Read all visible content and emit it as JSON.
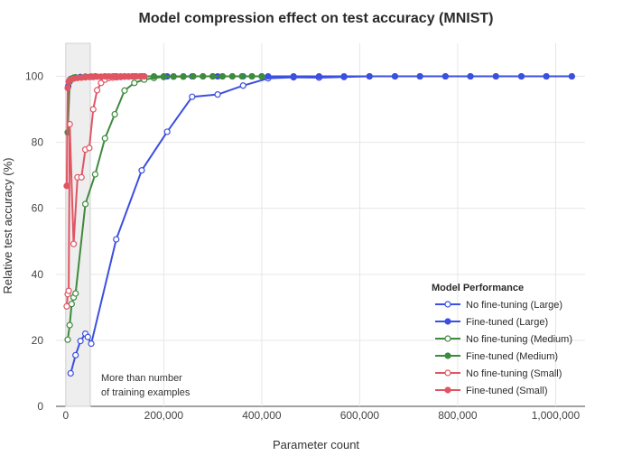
{
  "chart_data": {
    "type": "line",
    "title": "Model compression effect on test accuracy (MNIST)",
    "xlabel": "Parameter count",
    "ylabel": "Relative test accuracy (%)",
    "xlim": [
      -20000,
      1060000
    ],
    "ylim": [
      0,
      110
    ],
    "x_ticks": [
      0,
      200000,
      400000,
      600000,
      800000,
      1000000
    ],
    "x_tick_labels": [
      "0",
      "200,000",
      "400,000",
      "600,000",
      "800,000",
      "1,000,000"
    ],
    "y_ticks": [
      0,
      20,
      40,
      60,
      80,
      100
    ],
    "grid": true,
    "legend_title": "Model Performance",
    "legend_position": "bottom-right",
    "shaded_region": {
      "x_start": 0,
      "x_end": 50000,
      "label_line1": "More than number",
      "label_line2": "of training examples",
      "color": "#eeeeee"
    },
    "series": [
      {
        "name": "No fine-tuning (Large)",
        "color": "#3b4fe0",
        "marker": "open",
        "x": [
          10000,
          20000,
          30000,
          40000,
          45000,
          52000,
          103000,
          155000,
          207000,
          258000,
          310000,
          362000,
          413000,
          465000,
          517000,
          568000,
          620000,
          672000,
          723000,
          775000,
          826000,
          878000,
          930000,
          981000,
          1033000
        ],
        "y": [
          10,
          15.5,
          19.8,
          22,
          21,
          19,
          50.6,
          71.5,
          83.2,
          93.8,
          94.5,
          97.2,
          99.4,
          99.7,
          99.6,
          99.8,
          100,
          100,
          100,
          100,
          100,
          100,
          100,
          100,
          100
        ]
      },
      {
        "name": "Fine-tuned (Large)",
        "color": "#3b4fe0",
        "marker": "filled",
        "x": [
          5000,
          10000,
          20000,
          30000,
          40000,
          52000,
          103000,
          155000,
          207000,
          258000,
          310000,
          362000,
          413000,
          465000,
          517000,
          568000,
          620000,
          672000,
          723000,
          775000,
          826000,
          878000,
          930000,
          981000,
          1033000
        ],
        "y": [
          97,
          99.2,
          99.6,
          99.8,
          99.8,
          99.9,
          100,
          100,
          100,
          100,
          100,
          100,
          100,
          100,
          100,
          100,
          100,
          100,
          100,
          100,
          100,
          100,
          100,
          100,
          100
        ]
      },
      {
        "name": "No fine-tuning (Medium)",
        "color": "#3e8a3e",
        "marker": "open",
        "x": [
          4000,
          8000,
          12000,
          16000,
          20000,
          40000,
          60000,
          80000,
          100000,
          120000,
          140000,
          160000,
          180000,
          200000,
          220000,
          240000,
          260000,
          280000,
          300000,
          320000,
          340000,
          360000,
          380000,
          400000
        ],
        "y": [
          20.2,
          24.6,
          31,
          33,
          34.2,
          61.3,
          70.3,
          81.2,
          88.5,
          95.7,
          98,
          99,
          99.5,
          99.8,
          99.9,
          99.9,
          100,
          100,
          100,
          100,
          100,
          100,
          100,
          100
        ]
      },
      {
        "name": "Fine-tuned (Medium)",
        "color": "#3e8a3e",
        "marker": "filled",
        "x": [
          4000,
          8000,
          12000,
          16000,
          20000,
          40000,
          60000,
          80000,
          100000,
          120000,
          140000,
          160000,
          180000,
          200000,
          220000,
          240000,
          260000,
          280000,
          300000,
          320000,
          340000,
          360000,
          380000,
          400000
        ],
        "y": [
          83,
          98.4,
          99.3,
          99.6,
          99.7,
          99.9,
          100,
          100,
          100,
          100,
          100,
          100,
          100,
          100,
          100,
          100,
          100,
          100,
          100,
          100,
          100,
          100,
          100,
          100
        ]
      },
      {
        "name": "No fine-tuning (Small)",
        "color": "#e05564",
        "marker": "open",
        "x": [
          2000,
          4000,
          6000,
          8000,
          16000,
          24000,
          32000,
          40000,
          48000,
          56000,
          64000,
          72000,
          80000,
          88000,
          96000,
          104000,
          112000,
          120000,
          128000,
          136000,
          144000,
          152000,
          160000
        ],
        "y": [
          30.3,
          34,
          35,
          85.5,
          49.2,
          69.4,
          69.4,
          77.8,
          78.3,
          90,
          95.8,
          98,
          99,
          99.5,
          99.6,
          99.7,
          99.8,
          99.9,
          99.9,
          100,
          100,
          100,
          100
        ]
      },
      {
        "name": "Fine-tuned (Small)",
        "color": "#e05564",
        "marker": "filled",
        "x": [
          2000,
          4000,
          6000,
          8000,
          16000,
          24000,
          32000,
          40000,
          48000,
          56000,
          64000,
          72000,
          80000,
          88000,
          96000,
          104000,
          112000,
          120000,
          128000,
          136000,
          144000,
          152000,
          160000
        ],
        "y": [
          66.8,
          96.5,
          98.4,
          98.9,
          99.3,
          99.5,
          99.6,
          99.7,
          99.8,
          99.8,
          99.9,
          99.9,
          100,
          100,
          100,
          100,
          100,
          100,
          100,
          100,
          100,
          100,
          100
        ]
      }
    ]
  }
}
